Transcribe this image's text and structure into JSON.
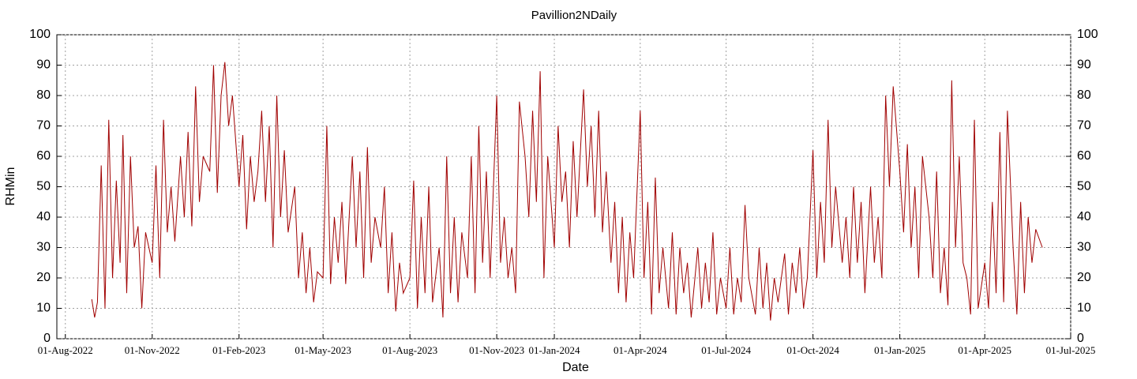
{
  "chart_data": {
    "type": "line",
    "title": "Pavillion2NDaily",
    "xlabel": "Date",
    "ylabel": "RHMin",
    "color": "#a00000",
    "grid": true,
    "xlim": [
      "2022-07-23",
      "2025-07-01"
    ],
    "xticks": [
      {
        "value": "2022-08-01",
        "label": "01-Aug-2022"
      },
      {
        "value": "2022-11-01",
        "label": "01-Nov-2022"
      },
      {
        "value": "2023-02-01",
        "label": "01-Feb-2023"
      },
      {
        "value": "2023-05-01",
        "label": "01-May-2023"
      },
      {
        "value": "2023-08-01",
        "label": "01-Aug-2023"
      },
      {
        "value": "2023-11-01",
        "label": "01-Nov-2023"
      },
      {
        "value": "2024-01-01",
        "label": "01-Jan-2024"
      },
      {
        "value": "2024-04-01",
        "label": "01-Apr-2024"
      },
      {
        "value": "2024-07-01",
        "label": "01-Jul-2024"
      },
      {
        "value": "2024-10-01",
        "label": "01-Oct-2024"
      },
      {
        "value": "2025-01-01",
        "label": "01-Jan-2025"
      },
      {
        "value": "2025-04-01",
        "label": "01-Apr-2025"
      },
      {
        "value": "2025-07-01",
        "label": "01-Jul-2025"
      }
    ],
    "ylim": [
      0,
      100
    ],
    "yticks": [
      0,
      10,
      20,
      30,
      40,
      50,
      60,
      70,
      80,
      90,
      100
    ],
    "y2lim": [
      0,
      100
    ],
    "y2ticks": [
      0,
      10,
      20,
      30,
      40,
      50,
      60,
      70,
      80,
      90,
      100
    ],
    "x": [
      "2022-08-29",
      "2022-09-01",
      "2022-09-04",
      "2022-09-08",
      "2022-09-12",
      "2022-09-16",
      "2022-09-20",
      "2022-09-24",
      "2022-09-28",
      "2022-10-01",
      "2022-10-05",
      "2022-10-09",
      "2022-10-13",
      "2022-10-17",
      "2022-10-21",
      "2022-10-25",
      "2022-11-01",
      "2022-11-05",
      "2022-11-09",
      "2022-11-13",
      "2022-11-17",
      "2022-11-21",
      "2022-11-25",
      "2022-12-01",
      "2022-12-05",
      "2022-12-09",
      "2022-12-13",
      "2022-12-17",
      "2022-12-21",
      "2022-12-25",
      "2023-01-01",
      "2023-01-05",
      "2023-01-09",
      "2023-01-13",
      "2023-01-17",
      "2023-01-21",
      "2023-01-25",
      "2023-02-01",
      "2023-02-05",
      "2023-02-09",
      "2023-02-13",
      "2023-02-17",
      "2023-02-21",
      "2023-02-25",
      "2023-03-01",
      "2023-03-05",
      "2023-03-09",
      "2023-03-13",
      "2023-03-17",
      "2023-03-21",
      "2023-03-25",
      "2023-04-01",
      "2023-04-05",
      "2023-04-09",
      "2023-04-13",
      "2023-04-17",
      "2023-04-21",
      "2023-04-25",
      "2023-05-01",
      "2023-05-05",
      "2023-05-09",
      "2023-05-13",
      "2023-05-17",
      "2023-05-21",
      "2023-05-25",
      "2023-06-01",
      "2023-06-05",
      "2023-06-09",
      "2023-06-13",
      "2023-06-17",
      "2023-06-21",
      "2023-06-25",
      "2023-07-01",
      "2023-07-05",
      "2023-07-09",
      "2023-07-13",
      "2023-07-17",
      "2023-07-21",
      "2023-07-25",
      "2023-08-01",
      "2023-08-05",
      "2023-08-09",
      "2023-08-13",
      "2023-08-17",
      "2023-08-21",
      "2023-08-25",
      "2023-09-01",
      "2023-09-05",
      "2023-09-09",
      "2023-09-13",
      "2023-09-17",
      "2023-09-21",
      "2023-09-25",
      "2023-10-01",
      "2023-10-05",
      "2023-10-09",
      "2023-10-13",
      "2023-10-17",
      "2023-10-21",
      "2023-10-25",
      "2023-11-01",
      "2023-11-05",
      "2023-11-09",
      "2023-11-13",
      "2023-11-17",
      "2023-11-21",
      "2023-11-25",
      "2023-12-01",
      "2023-12-05",
      "2023-12-09",
      "2023-12-13",
      "2023-12-17",
      "2023-12-21",
      "2023-12-25",
      "2024-01-01",
      "2024-01-05",
      "2024-01-09",
      "2024-01-13",
      "2024-01-17",
      "2024-01-21",
      "2024-01-25",
      "2024-02-01",
      "2024-02-05",
      "2024-02-09",
      "2024-02-13",
      "2024-02-17",
      "2024-02-21",
      "2024-02-25",
      "2024-03-01",
      "2024-03-05",
      "2024-03-09",
      "2024-03-13",
      "2024-03-17",
      "2024-03-21",
      "2024-03-25",
      "2024-04-01",
      "2024-04-05",
      "2024-04-09",
      "2024-04-13",
      "2024-04-17",
      "2024-04-21",
      "2024-04-25",
      "2024-05-01",
      "2024-05-05",
      "2024-05-09",
      "2024-05-13",
      "2024-05-17",
      "2024-05-21",
      "2024-05-25",
      "2024-06-01",
      "2024-06-05",
      "2024-06-09",
      "2024-06-13",
      "2024-06-17",
      "2024-06-21",
      "2024-06-25",
      "2024-07-01",
      "2024-07-05",
      "2024-07-09",
      "2024-07-13",
      "2024-07-17",
      "2024-07-21",
      "2024-07-25",
      "2024-08-01",
      "2024-08-05",
      "2024-08-09",
      "2024-08-13",
      "2024-08-17",
      "2024-08-21",
      "2024-08-25",
      "2024-09-01",
      "2024-09-05",
      "2024-09-09",
      "2024-09-13",
      "2024-09-17",
      "2024-09-21",
      "2024-09-25",
      "2024-10-01",
      "2024-10-05",
      "2024-10-09",
      "2024-10-13",
      "2024-10-17",
      "2024-10-21",
      "2024-10-25",
      "2024-11-01",
      "2024-11-05",
      "2024-11-09",
      "2024-11-13",
      "2024-11-17",
      "2024-11-21",
      "2024-11-25",
      "2024-12-01",
      "2024-12-05",
      "2024-12-09",
      "2024-12-13",
      "2024-12-17",
      "2024-12-21",
      "2024-12-25",
      "2025-01-01",
      "2025-01-05",
      "2025-01-09",
      "2025-01-13",
      "2025-01-17",
      "2025-01-21",
      "2025-01-25",
      "2025-02-01",
      "2025-02-05",
      "2025-02-09",
      "2025-02-13",
      "2025-02-17",
      "2025-02-21",
      "2025-02-25",
      "2025-03-01",
      "2025-03-05",
      "2025-03-09",
      "2025-03-13",
      "2025-03-17",
      "2025-03-21",
      "2025-03-25",
      "2025-04-01",
      "2025-04-05",
      "2025-04-09",
      "2025-04-13",
      "2025-04-17",
      "2025-04-21",
      "2025-04-25",
      "2025-05-01",
      "2025-05-05",
      "2025-05-09",
      "2025-05-13",
      "2025-05-17",
      "2025-05-21",
      "2025-05-25",
      "2025-06-01"
    ],
    "values": [
      13,
      7,
      12,
      57,
      10,
      72,
      20,
      52,
      25,
      67,
      15,
      60,
      30,
      37,
      10,
      35,
      25,
      57,
      20,
      72,
      35,
      50,
      32,
      60,
      40,
      68,
      37,
      83,
      45,
      60,
      55,
      90,
      48,
      80,
      91,
      70,
      80,
      50,
      67,
      36,
      60,
      45,
      55,
      75,
      45,
      70,
      30,
      80,
      40,
      62,
      35,
      50,
      20,
      35,
      15,
      30,
      12,
      22,
      20,
      70,
      18,
      40,
      25,
      45,
      18,
      60,
      30,
      55,
      20,
      63,
      25,
      40,
      30,
      50,
      15,
      35,
      9,
      25,
      15,
      20,
      52,
      10,
      40,
      15,
      50,
      12,
      30,
      7,
      60,
      15,
      40,
      12,
      35,
      20,
      60,
      15,
      70,
      25,
      55,
      20,
      80,
      25,
      40,
      20,
      30,
      15,
      78,
      60,
      40,
      75,
      45,
      88,
      20,
      60,
      30,
      70,
      45,
      55,
      30,
      65,
      40,
      82,
      50,
      70,
      40,
      75,
      35,
      55,
      25,
      45,
      15,
      40,
      12,
      35,
      20,
      75,
      20,
      45,
      8,
      53,
      15,
      30,
      10,
      35,
      8,
      30,
      15,
      25,
      7,
      30,
      10,
      25,
      12,
      35,
      8,
      20,
      10,
      30,
      8,
      20,
      12,
      44,
      20,
      8,
      30,
      10,
      25,
      6,
      20,
      12,
      28,
      8,
      25,
      15,
      30,
      10,
      20,
      62,
      20,
      45,
      25,
      72,
      30,
      50,
      25,
      40,
      20,
      50,
      25,
      45,
      15,
      50,
      25,
      40,
      20,
      80,
      50,
      83,
      55,
      35,
      64,
      30,
      50,
      20,
      60,
      40,
      20,
      55,
      15,
      30,
      11,
      85,
      30,
      60,
      25,
      20,
      8,
      72,
      10,
      25,
      10,
      45,
      15,
      68,
      12,
      75,
      30,
      8,
      45,
      15,
      40,
      25,
      36,
      30
    ]
  }
}
